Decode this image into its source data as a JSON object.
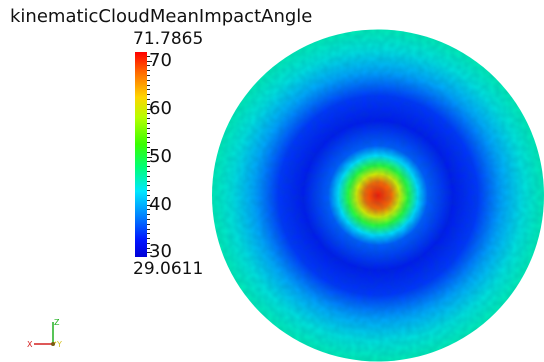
{
  "scalar_bar": {
    "title": "kinematicCloudMeanImpactAngle",
    "max_label": "71.7865",
    "min_label": "29.0611",
    "range": [
      29.0611,
      71.7865
    ],
    "ticks": [
      {
        "value": 70,
        "label": "70"
      },
      {
        "value": 60,
        "label": "60"
      },
      {
        "value": 50,
        "label": "50"
      },
      {
        "value": 40,
        "label": "40"
      },
      {
        "value": 30,
        "label": "30"
      }
    ],
    "colormap": [
      "#0000d6",
      "#0014ff",
      "#0083ff",
      "#00e7ff",
      "#00ff75",
      "#39ff00",
      "#b6ff00",
      "#ffd500",
      "#ff6a00",
      "#ff0000"
    ]
  },
  "orientation_axes": {
    "x_label": "X",
    "y_label": "Y",
    "z_label": "Z",
    "x_color": "#d42020",
    "y_color": "#d4c020",
    "z_color": "#20b020"
  },
  "render": {
    "background": "#ffffff",
    "object": "circular-patch"
  }
}
